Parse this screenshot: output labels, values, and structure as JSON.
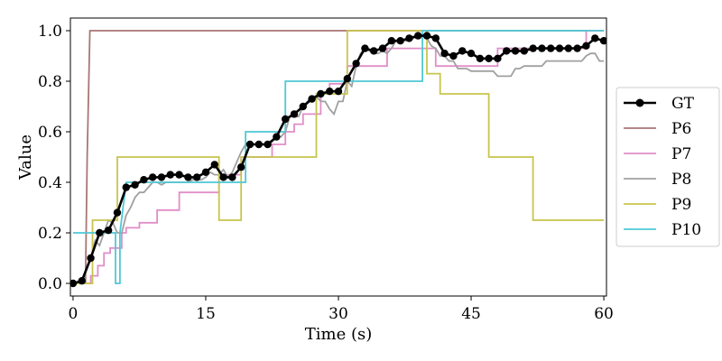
{
  "chart_data": {
    "type": "line",
    "title": "",
    "xlabel": "Time (s)",
    "ylabel": "Value",
    "xlim": [
      -0.3,
      60.3
    ],
    "ylim": [
      -0.05,
      1.05
    ],
    "xticks": [
      0,
      15,
      30,
      45,
      60
    ],
    "xtick_labels": [
      "0",
      "15",
      "30",
      "45",
      "60"
    ],
    "yticks": [
      0.0,
      0.2,
      0.4,
      0.6,
      0.8,
      1.0
    ],
    "ytick_labels": [
      "0.0",
      "0.2",
      "0.4",
      "0.6",
      "0.8",
      "1.0"
    ],
    "grid": false,
    "legend_position": "right (outside plot)",
    "series": [
      {
        "name": "GT",
        "color": "#000000",
        "marker": "circle",
        "x": [
          0,
          1,
          2,
          3,
          4,
          5,
          6,
          7,
          8,
          9,
          10,
          11,
          12,
          13,
          14,
          15,
          16,
          17,
          18,
          19,
          20,
          21,
          22,
          23,
          24,
          25,
          26,
          27,
          28,
          29,
          30,
          31,
          32,
          33,
          34,
          35,
          36,
          37,
          38,
          39,
          40,
          41,
          42,
          43,
          44,
          45,
          46,
          47,
          48,
          49,
          50,
          51,
          52,
          53,
          54,
          55,
          56,
          57,
          58,
          59,
          60
        ],
        "y": [
          0.0,
          0.01,
          0.1,
          0.2,
          0.21,
          0.28,
          0.38,
          0.39,
          0.41,
          0.42,
          0.42,
          0.43,
          0.43,
          0.42,
          0.42,
          0.44,
          0.47,
          0.42,
          0.42,
          0.46,
          0.55,
          0.55,
          0.55,
          0.58,
          0.65,
          0.67,
          0.7,
          0.73,
          0.75,
          0.76,
          0.76,
          0.81,
          0.87,
          0.93,
          0.92,
          0.93,
          0.96,
          0.96,
          0.97,
          0.98,
          0.98,
          0.97,
          0.91,
          0.9,
          0.92,
          0.91,
          0.89,
          0.89,
          0.89,
          0.92,
          0.92,
          0.92,
          0.93,
          0.93,
          0.93,
          0.93,
          0.93,
          0.93,
          0.94,
          0.97,
          0.96
        ]
      },
      {
        "name": "P6",
        "color": "#a97674",
        "x": [
          0,
          1.4,
          1.6,
          1.9,
          60
        ],
        "y": [
          0,
          0,
          0.5,
          1.0,
          1.0
        ]
      },
      {
        "name": "P7",
        "color": "#e08ec8",
        "x": [
          0,
          2.0,
          2.0,
          2.8,
          2.8,
          3.5,
          3.5,
          4.2,
          4.2,
          5.5,
          5.5,
          6.0,
          6.0,
          7.5,
          7.5,
          9.5,
          9.5,
          12.0,
          12.0,
          16.5,
          16.5,
          19.0,
          19.0,
          22.5,
          22.5,
          24.0,
          24.0,
          25.0,
          25.0,
          26.0,
          26.0,
          28.0,
          28.0,
          29.0,
          29.0,
          31.0,
          31.0,
          32.0,
          32.0,
          35.5,
          35.5,
          38.0,
          38.0,
          41.0,
          41.0,
          48.0,
          48.0,
          58.0,
          58.0,
          60
        ],
        "y": [
          0,
          0,
          0.03,
          0.03,
          0.07,
          0.07,
          0.12,
          0.12,
          0.14,
          0.14,
          0.2,
          0.2,
          0.22,
          0.22,
          0.24,
          0.24,
          0.29,
          0.29,
          0.36,
          0.36,
          0.43,
          0.43,
          0.5,
          0.5,
          0.55,
          0.55,
          0.6,
          0.6,
          0.63,
          0.63,
          0.67,
          0.67,
          0.75,
          0.75,
          0.79,
          0.79,
          0.86,
          0.86,
          0.86,
          0.86,
          0.93,
          0.93,
          0.93,
          0.93,
          0.86,
          0.86,
          0.93,
          0.93,
          1.0,
          1.0
        ]
      },
      {
        "name": "P8",
        "color": "#a0a0a0",
        "x": [
          0,
          0.5,
          1,
          1.5,
          2,
          2.5,
          3,
          3.5,
          4,
          4.5,
          5,
          5.5,
          6,
          6.5,
          7,
          7.5,
          8,
          8.5,
          9,
          9.5,
          10,
          10.5,
          11,
          11.5,
          12,
          12.5,
          13,
          13.5,
          14,
          14.5,
          15,
          15.5,
          16,
          16.5,
          17,
          17.5,
          18,
          18.5,
          19,
          19.5,
          20,
          20.5,
          21,
          21.5,
          22,
          22.5,
          23,
          23.5,
          24,
          24.5,
          25,
          25.5,
          26,
          26.5,
          27,
          27.5,
          28,
          28.5,
          29,
          29.5,
          30,
          30.5,
          31,
          31.5,
          32,
          32.5,
          33,
          33.5,
          34,
          34.5,
          35,
          35.5,
          36,
          36.5,
          37,
          37.5,
          38,
          38.5,
          39,
          39.5,
          40,
          40.5,
          41,
          41.5,
          42,
          42.5,
          43,
          43.5,
          44,
          44.5,
          45,
          45.5,
          46,
          46.5,
          47,
          47.5,
          48,
          48.5,
          49,
          49.5,
          50,
          50.5,
          51,
          51.5,
          52,
          52.5,
          53,
          53.5,
          54,
          54.5,
          55,
          55.5,
          56,
          56.5,
          57,
          57.5,
          58,
          58.5,
          59,
          59.5,
          60
        ],
        "y": [
          0.0,
          0.0,
          0.0,
          0.05,
          0.1,
          0.17,
          0.15,
          0.2,
          0.25,
          0.24,
          0.2,
          0.2,
          0.27,
          0.3,
          0.34,
          0.36,
          0.36,
          0.38,
          0.4,
          0.4,
          0.39,
          0.4,
          0.4,
          0.4,
          0.4,
          0.4,
          0.4,
          0.41,
          0.41,
          0.41,
          0.42,
          0.44,
          0.43,
          0.43,
          0.45,
          0.42,
          0.44,
          0.48,
          0.52,
          0.55,
          0.55,
          0.55,
          0.55,
          0.55,
          0.55,
          0.56,
          0.58,
          0.58,
          0.6,
          0.66,
          0.66,
          0.66,
          0.7,
          0.72,
          0.74,
          0.74,
          0.72,
          0.72,
          0.69,
          0.67,
          0.72,
          0.72,
          0.8,
          0.78,
          0.86,
          0.91,
          0.93,
          0.92,
          0.91,
          0.91,
          0.92,
          0.91,
          0.93,
          0.96,
          0.97,
          0.96,
          0.96,
          0.97,
          0.98,
          0.98,
          0.97,
          0.94,
          0.93,
          0.9,
          0.9,
          0.88,
          0.88,
          0.85,
          0.85,
          0.85,
          0.84,
          0.84,
          0.84,
          0.84,
          0.84,
          0.84,
          0.82,
          0.82,
          0.82,
          0.82,
          0.85,
          0.85,
          0.86,
          0.86,
          0.86,
          0.86,
          0.86,
          0.88,
          0.88,
          0.88,
          0.88,
          0.88,
          0.88,
          0.88,
          0.88,
          0.88,
          0.9,
          0.91,
          0.91,
          0.88,
          0.88
        ]
      },
      {
        "name": "P9",
        "color": "#c8c44e",
        "x": [
          0,
          2.2,
          2.2,
          5.0,
          5.0,
          16.5,
          16.5,
          19.0,
          19.0,
          27.5,
          27.5,
          31.0,
          31.0,
          40.0,
          40.0,
          41.5,
          41.5,
          47.0,
          47.0,
          52.0,
          52.0,
          60
        ],
        "y": [
          0,
          0,
          0.25,
          0.25,
          0.5,
          0.5,
          0.25,
          0.25,
          0.5,
          0.5,
          0.75,
          0.75,
          1.0,
          1.0,
          0.83,
          0.83,
          0.75,
          0.75,
          0.5,
          0.5,
          0.25,
          0.25
        ]
      },
      {
        "name": "P10",
        "color": "#4fc8d6",
        "x": [
          0,
          2.0,
          2.0,
          4.8,
          4.8,
          5.3,
          5.3,
          6.0,
          6.0,
          19.5,
          19.5,
          24.0,
          24.0,
          39.5,
          39.5,
          60
        ],
        "y": [
          0.2,
          0.2,
          0.2,
          0.2,
          0.0,
          0.0,
          0.2,
          0.4,
          0.4,
          0.4,
          0.6,
          0.6,
          0.8,
          0.8,
          1.0,
          1.0
        ]
      }
    ]
  }
}
